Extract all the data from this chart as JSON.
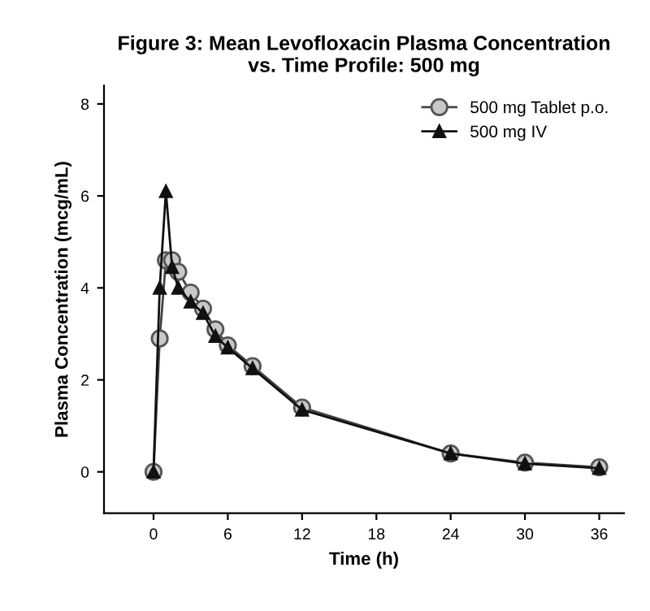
{
  "chart_data": {
    "type": "line",
    "title": "Figure 3: Mean Levofloxacin Plasma Concentration\nvs. Time Profile: 500 mg",
    "xlabel": "Time (h)",
    "ylabel": "Plasma Concentration (mcg/mL)",
    "xlim": [
      -4,
      38
    ],
    "ylim": [
      -0.9,
      8.4
    ],
    "xticks": [
      0,
      6,
      12,
      18,
      24,
      30,
      36
    ],
    "yticks": [
      0,
      2,
      4,
      6,
      8
    ],
    "grid": false,
    "legend": "top right",
    "series": [
      {
        "name": "500 mg Tablet p.o.",
        "color": "#c8c8c8",
        "marker": "circle",
        "x": [
          0,
          0.5,
          1,
          1.5,
          2,
          3,
          4,
          5,
          6,
          8,
          12,
          24,
          30,
          36
        ],
        "values": [
          0,
          2.9,
          4.6,
          4.6,
          4.35,
          3.9,
          3.55,
          3.1,
          2.75,
          2.3,
          1.4,
          0.4,
          0.2,
          0.1
        ]
      },
      {
        "name": "500 mg IV",
        "color": "#111111",
        "marker": "triangle",
        "x": [
          0,
          0.5,
          1,
          1.5,
          2,
          3,
          4,
          5,
          6,
          8,
          12,
          24,
          30,
          36
        ],
        "values": [
          0,
          4.0,
          6.1,
          4.45,
          4.0,
          3.7,
          3.45,
          2.95,
          2.7,
          2.25,
          1.35,
          0.4,
          0.18,
          0.08
        ]
      }
    ]
  }
}
